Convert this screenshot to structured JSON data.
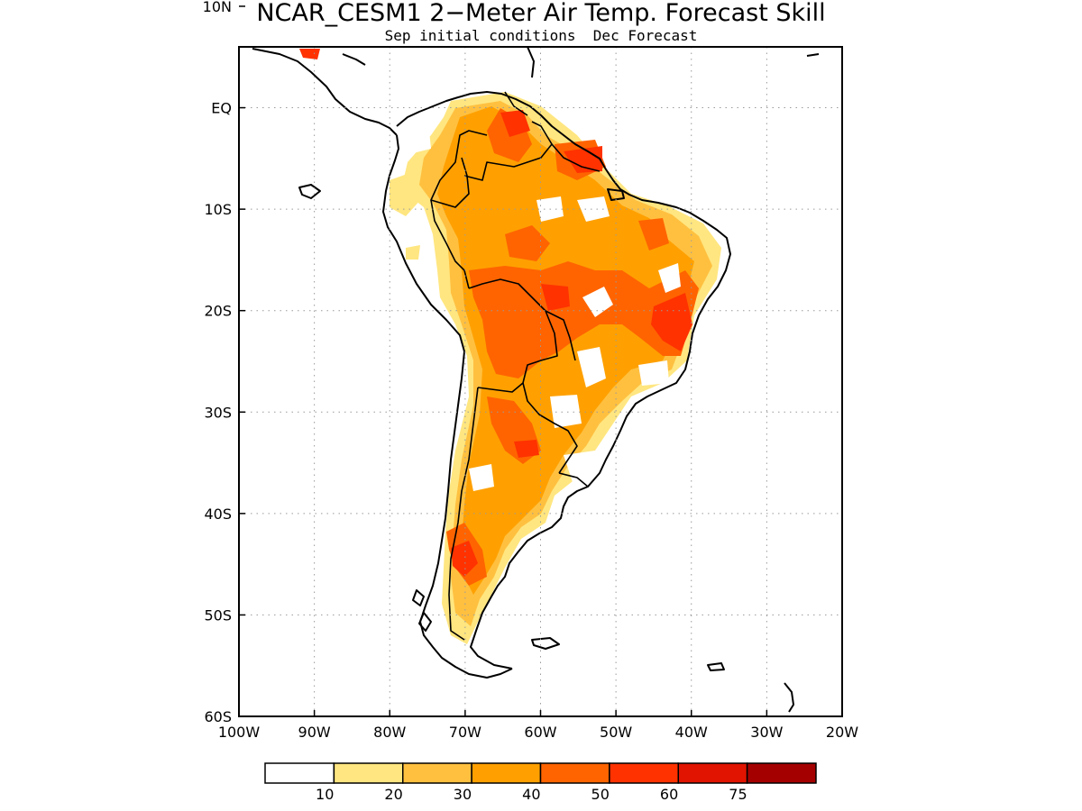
{
  "map": {
    "title": "NCAR_CESM1 2−Meter Air Temp. Forecast Skill",
    "subtitle": "Sep initial conditions  Dec Forecast",
    "lon_range": [
      -100,
      -20
    ],
    "lat_range": [
      -60,
      6
    ],
    "lon_ticks": [
      {
        "value": -100,
        "label": "100W"
      },
      {
        "value": -90,
        "label": "90W"
      },
      {
        "value": -80,
        "label": "80W"
      },
      {
        "value": -70,
        "label": "70W"
      },
      {
        "value": -60,
        "label": "60W"
      },
      {
        "value": -50,
        "label": "50W"
      },
      {
        "value": -40,
        "label": "40W"
      },
      {
        "value": -30,
        "label": "30W"
      },
      {
        "value": -20,
        "label": "20W"
      }
    ],
    "lat_ticks": [
      {
        "value": 10,
        "label": "10N"
      },
      {
        "value": 0,
        "label": "EQ"
      },
      {
        "value": -10,
        "label": "10S"
      },
      {
        "value": -20,
        "label": "20S"
      },
      {
        "value": -30,
        "label": "30S"
      },
      {
        "value": -40,
        "label": "40S"
      },
      {
        "value": -50,
        "label": "50S"
      },
      {
        "value": -60,
        "label": "60S"
      }
    ],
    "grid": true,
    "colorbar": {
      "bins": [
        {
          "color": "#ffffff"
        },
        {
          "color": "#ffe680"
        },
        {
          "color": "#ffc040"
        },
        {
          "color": "#ffa000"
        },
        {
          "color": "#ff6400"
        },
        {
          "color": "#ff3200"
        },
        {
          "color": "#e01400"
        },
        {
          "color": "#a50000"
        }
      ],
      "labels": [
        "10",
        "20",
        "30",
        "40",
        "50",
        "60",
        "75"
      ]
    }
  }
}
